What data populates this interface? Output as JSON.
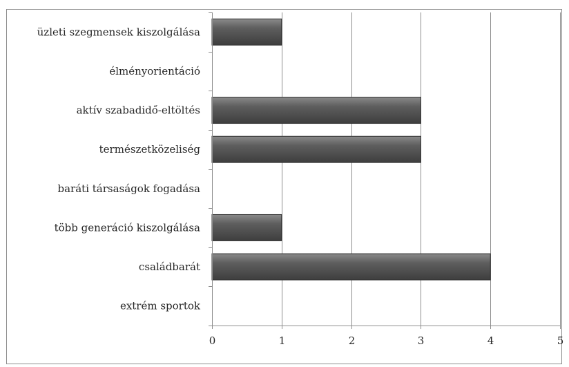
{
  "chart_data": {
    "type": "bar",
    "orientation": "horizontal",
    "categories": [
      "üzleti szegmensek kiszolgálása",
      "élményorientáció",
      "aktív szabadidő-eltöltés",
      "természetközeliség",
      "baráti társaságok fogadása",
      "több generáció kiszolgálása",
      "családbarát",
      "extrém sportok"
    ],
    "values": [
      1,
      0,
      3,
      3,
      0,
      1,
      4,
      0
    ],
    "xlim": [
      0,
      5
    ],
    "xticks": [
      "0",
      "1",
      "2",
      "3",
      "4",
      "5"
    ],
    "grid": true,
    "legend": "none",
    "bar_color": "#5a5a5a"
  }
}
